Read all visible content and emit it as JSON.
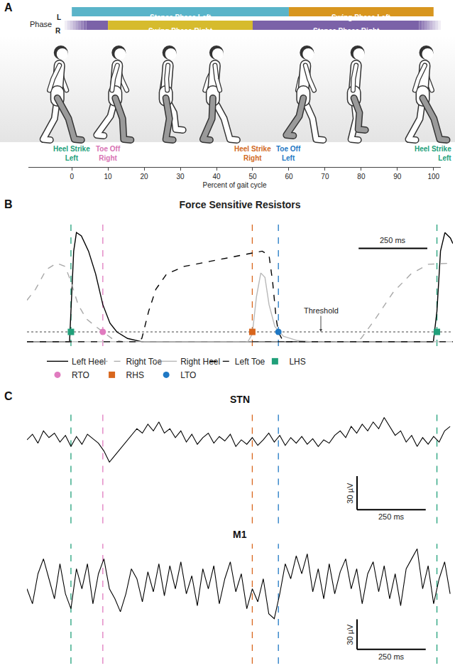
{
  "chart_data": [
    {
      "panel": "A",
      "type": "timeline",
      "xlabel": "Percent of gait cycle",
      "xlim": [
        -12,
        102
      ],
      "xticks": [
        0,
        10,
        20,
        30,
        40,
        50,
        60,
        70,
        80,
        90,
        100
      ],
      "row_title": "Phase",
      "rows": [
        {
          "name": "L",
          "phases": [
            {
              "label": "Stance Phase Left",
              "start": 0,
              "end": 60,
              "color": "#5ab4c9"
            },
            {
              "label": "Swing Phase Left",
              "start": 60,
              "end": 100,
              "color": "#d8961f"
            }
          ]
        },
        {
          "name": "R",
          "phases": [
            {
              "start": -2,
              "end": 10,
              "color": "#7b62a8"
            },
            {
              "label": "Swing Phase Right",
              "start": 10,
              "end": 50,
              "color": "#d6bb2d"
            },
            {
              "label": "Stance Phase Right",
              "start": 50,
              "end": 102,
              "color": "#7b62a8"
            }
          ]
        }
      ],
      "events": [
        {
          "label": "Heel Strike Left",
          "x": 0,
          "color": "#21a07a"
        },
        {
          "label": "Toe Off Right",
          "x": 10,
          "color": "#d873b4"
        },
        {
          "label": "Heel Strike Right",
          "x": 50,
          "color": "#d2691e"
        },
        {
          "label": "Toe Off Left",
          "x": 60,
          "color": "#1f78c4"
        },
        {
          "label": "Heel Strike Left",
          "x": 100,
          "color": "#21a07a"
        }
      ]
    },
    {
      "panel": "B",
      "type": "line",
      "title": "Force Sensitive Resistors",
      "xlim": [
        0,
        1550
      ],
      "ylim": [
        -0.04,
        1.08
      ],
      "tick_labels": false,
      "legend": "bottom",
      "threshold": {
        "value": 0.09,
        "label": "Threshold"
      },
      "scalebar": {
        "length": 250,
        "label": "250 ms"
      },
      "series": [
        {
          "name": "Left Heel",
          "color": "#000000",
          "line_style": "solid",
          "x": [
            0,
            155,
            160,
            170,
            180,
            198,
            224,
            250,
            276,
            302,
            327,
            366,
            418,
            1479,
            1492,
            1505,
            1521,
            1541,
            1550
          ],
          "values": [
            0,
            0,
            0.28,
            0.83,
            1.0,
            0.97,
            0.83,
            0.62,
            0.34,
            0.17,
            0.09,
            0.03,
            0,
            0,
            0.28,
            0.83,
            1.0,
            0.95,
            0.9
          ]
        },
        {
          "name": "Right Toe",
          "color": "#a8a8a8",
          "line_style": "dashed",
          "x": [
            0,
            31,
            70,
            108,
            139,
            160,
            186,
            216,
            250,
            276,
            314,
            350,
            1191,
            1216,
            1268,
            1332,
            1397,
            1461,
            1526,
            1550
          ],
          "values": [
            0.38,
            0.48,
            0.66,
            0.72,
            0.69,
            0.55,
            0.34,
            0.21,
            0.14,
            0.09,
            0.02,
            0,
            0,
            0.03,
            0.21,
            0.45,
            0.62,
            0.71,
            0.72,
            0.72
          ]
        },
        {
          "name": "Right Heel",
          "color": "#b8b8b8",
          "line_style": "solid",
          "x": [
            0,
            804,
            820,
            835,
            851,
            866,
            881,
            902,
            933,
            985,
            1036,
            1550
          ],
          "values": [
            0,
            0,
            0.07,
            0.41,
            0.63,
            0.59,
            0.34,
            0.14,
            0.05,
            0.01,
            0,
            0
          ]
        },
        {
          "name": "Left Toe",
          "color": "#000000",
          "line_style": "dashed",
          "x": [
            0,
            405,
            418,
            443,
            469,
            508,
            572,
            675,
            778,
            856,
            881,
            894,
            907,
            915,
            933,
            1550
          ],
          "values": [
            0,
            0,
            0.03,
            0.28,
            0.48,
            0.62,
            0.69,
            0.74,
            0.79,
            0.83,
            0.79,
            0.55,
            0.21,
            0.09,
            0,
            0
          ]
        },
        {
          "name": "LHS",
          "type": "scatter",
          "marker": "square",
          "color": "#21a07a",
          "x": [
            160,
            1492
          ],
          "values": [
            0.09,
            0.09
          ]
        },
        {
          "name": "RTO",
          "type": "scatter",
          "marker": "circle",
          "color": "#e07bbf",
          "x": [
            276
          ],
          "values": [
            0.09
          ]
        },
        {
          "name": "RHS",
          "type": "scatter",
          "marker": "square",
          "color": "#d8661d",
          "x": [
            820
          ],
          "values": [
            0.09
          ]
        },
        {
          "name": "LTO",
          "type": "scatter",
          "marker": "circle",
          "color": "#1f78c4",
          "x": [
            915
          ],
          "values": [
            0.09
          ]
        }
      ]
    },
    {
      "panel": "C",
      "type": "line",
      "xlim": [
        0,
        1550
      ],
      "tick_labels": false,
      "x": [
        0,
        20,
        40,
        60,
        80,
        100,
        120,
        140,
        160,
        180,
        200,
        220,
        240,
        260,
        280,
        300,
        320,
        340,
        360,
        380,
        400,
        420,
        440,
        460,
        480,
        500,
        520,
        540,
        560,
        580,
        600,
        620,
        640,
        660,
        680,
        700,
        720,
        740,
        760,
        780,
        800,
        820,
        840,
        860,
        880,
        900,
        920,
        940,
        960,
        980,
        1000,
        1020,
        1040,
        1060,
        1080,
        1100,
        1120,
        1140,
        1160,
        1180,
        1200,
        1220,
        1240,
        1260,
        1280,
        1300,
        1320,
        1340,
        1360,
        1380,
        1400,
        1420,
        1440,
        1460,
        1480,
        1500,
        1520,
        1540
      ],
      "subplots": [
        {
          "title": "STN",
          "color": "#000000",
          "ylim": [
            -75,
            28
          ],
          "values": [
            0,
            5,
            -3,
            8,
            2,
            6,
            -2,
            4,
            -6,
            3,
            -4,
            5,
            1,
            -3,
            -10,
            -20,
            -14,
            -8,
            -2,
            4,
            10,
            6,
            14,
            8,
            16,
            6,
            10,
            2,
            8,
            -2,
            5,
            -4,
            2,
            6,
            -3,
            3,
            -1,
            5,
            -6,
            0,
            -4,
            2,
            -5,
            0,
            6,
            -2,
            4,
            -5,
            2,
            -3,
            3,
            -4,
            1,
            -6,
            0,
            -3,
            4,
            8,
            2,
            12,
            6,
            14,
            8,
            16,
            10,
            20,
            12,
            4,
            8,
            -2,
            4,
            -6,
            2,
            -4,
            3,
            -2,
            8,
            12
          ]
        },
        {
          "title": "M1",
          "color": "#000000",
          "ylim": [
            -80,
            40
          ],
          "values": [
            -5,
            -20,
            10,
            25,
            5,
            -15,
            20,
            -10,
            -25,
            15,
            -5,
            20,
            -20,
            10,
            25,
            -5,
            -15,
            -28,
            -10,
            15,
            5,
            -18,
            12,
            -8,
            20,
            -12,
            18,
            -5,
            22,
            -10,
            8,
            -22,
            15,
            -5,
            18,
            -20,
            5,
            22,
            -8,
            10,
            -25,
            -5,
            -18,
            5,
            -30,
            -35,
            -10,
            20,
            5,
            28,
            10,
            30,
            -8,
            15,
            -15,
            20,
            -10,
            12,
            25,
            -5,
            15,
            -20,
            10,
            22,
            -8,
            18,
            -15,
            10,
            -22,
            15,
            25,
            35,
            -5,
            18,
            -20,
            5,
            22,
            -10
          ]
        }
      ],
      "scalebar": {
        "x_length": 250,
        "x_label": "250 ms",
        "y_length": 30,
        "y_label": "30 µV"
      }
    }
  ]
}
